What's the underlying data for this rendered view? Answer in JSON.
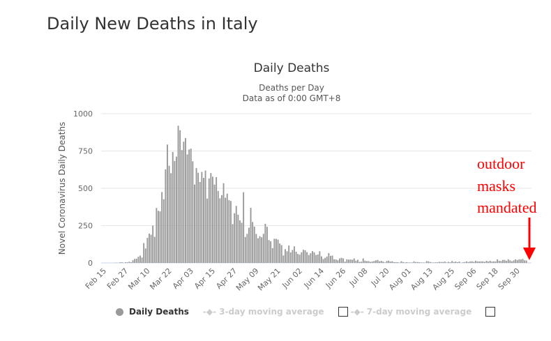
{
  "page_title": "Daily New Deaths in Italy",
  "annotation": {
    "lines": [
      "outdoor",
      "masks",
      "mandated"
    ],
    "color": "#ff0000"
  },
  "legend": {
    "items": [
      {
        "label": "Daily Deaths",
        "active": true
      },
      {
        "label": "3-day moving average",
        "active": false
      },
      {
        "label": "7-day moving average",
        "active": false
      }
    ]
  },
  "chart_data": {
    "type": "bar",
    "title": "Daily Deaths",
    "subtitle_lines": [
      "Deaths per Day",
      "Data as of 0:00 GMT+8"
    ],
    "ylabel": "Novel Coronavirus Daily Deaths",
    "ylim": [
      0,
      1000
    ],
    "yticks": [
      "0",
      "250",
      "500",
      "750",
      "1000"
    ],
    "ytick_values": [
      0,
      250,
      500,
      750,
      1000
    ],
    "start_date": "2020-02-15",
    "xtick_labels": [
      "Feb 15",
      "Feb 27",
      "Mar 10",
      "Mar 22",
      "Apr 03",
      "Apr 15",
      "Apr 27",
      "May 09",
      "May 21",
      "Jun 02",
      "Jun 14",
      "Jun 26",
      "Jul 08",
      "Jul 20",
      "Aug 01",
      "Aug 13",
      "Aug 25",
      "Sep 06",
      "Sep 18",
      "Sep 30"
    ],
    "xtick_every_days": 12,
    "bar_color": "#999999",
    "series": [
      {
        "name": "Daily Deaths",
        "values": [
          0,
          0,
          0,
          0,
          0,
          0,
          1,
          1,
          1,
          4,
          4,
          1,
          5,
          4,
          8,
          5,
          18,
          27,
          28,
          41,
          49,
          36,
          133,
          97,
          168,
          196,
          189,
          250,
          175,
          368,
          349,
          345,
          475,
          427,
          627,
          793,
          651,
          601,
          743,
          683,
          712,
          919,
          889,
          756,
          812,
          837,
          727,
          760,
          766,
          681,
          525,
          636,
          604,
          542,
          610,
          570,
          619,
          431,
          566,
          602,
          578,
          525,
          575,
          482,
          433,
          454,
          534,
          437,
          464,
          420,
          415,
          260,
          333,
          382,
          323,
          285,
          269,
          474,
          174,
          195,
          236,
          369,
          274,
          243,
          194,
          165,
          179,
          172,
          195,
          262,
          242,
          153,
          145,
          99,
          162,
          161,
          156,
          130,
          119,
          50,
          92,
          78,
          117,
          70,
          87,
          111,
          75,
          60,
          55,
          71,
          88,
          85,
          72,
          53,
          65,
          79,
          71,
          53,
          56,
          78,
          44,
          26,
          34,
          43,
          66,
          47,
          49,
          24,
          23,
          18,
          30,
          34,
          30,
          8,
          24,
          22,
          23,
          21,
          30,
          15,
          21,
          7,
          8,
          30,
          15,
          12,
          12,
          7,
          9,
          13,
          17,
          20,
          11,
          14,
          9,
          3,
          13,
          15,
          9,
          11,
          5,
          5,
          5,
          2,
          11,
          6,
          3,
          5,
          3,
          3,
          3,
          10,
          6,
          6,
          5,
          3,
          3,
          2,
          12,
          10,
          6,
          3,
          3,
          4,
          4,
          7,
          6,
          6,
          9,
          3,
          7,
          4,
          13,
          6,
          9,
          5,
          9,
          1,
          4,
          6,
          10,
          6,
          10,
          11,
          7,
          14,
          10,
          10,
          10,
          10,
          7,
          14,
          9,
          14,
          9,
          10,
          10,
          24,
          14,
          13,
          20,
          20,
          14,
          24,
          17,
          11,
          17,
          24,
          19,
          24,
          23,
          27,
          17,
          16
        ]
      }
    ]
  }
}
